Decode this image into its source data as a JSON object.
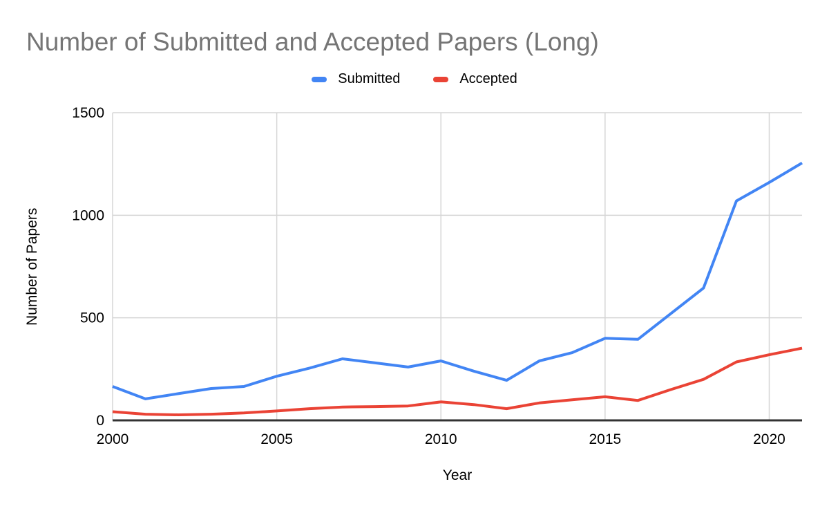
{
  "title": {
    "text": "Number of Submitted and Accepted Papers (Long)",
    "color": "#757575"
  },
  "legend": {
    "items": [
      {
        "label": "Submitted",
        "color": "#4285F4"
      },
      {
        "label": "Accepted",
        "color": "#EA4335"
      }
    ]
  },
  "chart_data": {
    "type": "line",
    "title": "Number of Submitted and Accepted Papers (Long)",
    "xlabel": "Year",
    "ylabel": "Number of Papers",
    "x": [
      2000,
      2001,
      2002,
      2003,
      2004,
      2005,
      2006,
      2007,
      2008,
      2009,
      2010,
      2011,
      2012,
      2013,
      2014,
      2015,
      2016,
      2017,
      2018,
      2019,
      2020,
      2021
    ],
    "series": [
      {
        "name": "Submitted",
        "color": "#4285F4",
        "values": [
          165,
          105,
          130,
          155,
          165,
          215,
          255,
          300,
          280,
          260,
          290,
          240,
          195,
          290,
          330,
          400,
          395,
          520,
          645,
          1070,
          1160,
          1255
        ]
      },
      {
        "name": "Accepted",
        "color": "#EA4335",
        "values": [
          42,
          30,
          27,
          30,
          36,
          46,
          57,
          65,
          67,
          70,
          90,
          77,
          57,
          85,
          100,
          115,
          97,
          150,
          200,
          285,
          320,
          352
        ]
      }
    ],
    "xlim": [
      2000,
      2021
    ],
    "ylim": [
      0,
      1500
    ],
    "xticks": [
      2000,
      2005,
      2010,
      2015,
      2020
    ],
    "yticks": [
      0,
      500,
      1000,
      1500
    ],
    "grid": true,
    "legend_position": "top",
    "styles": {
      "grid_color": "#D5D5D5",
      "axis_color": "#333333",
      "tick_label_color": "#000000",
      "line_width": 4
    }
  }
}
